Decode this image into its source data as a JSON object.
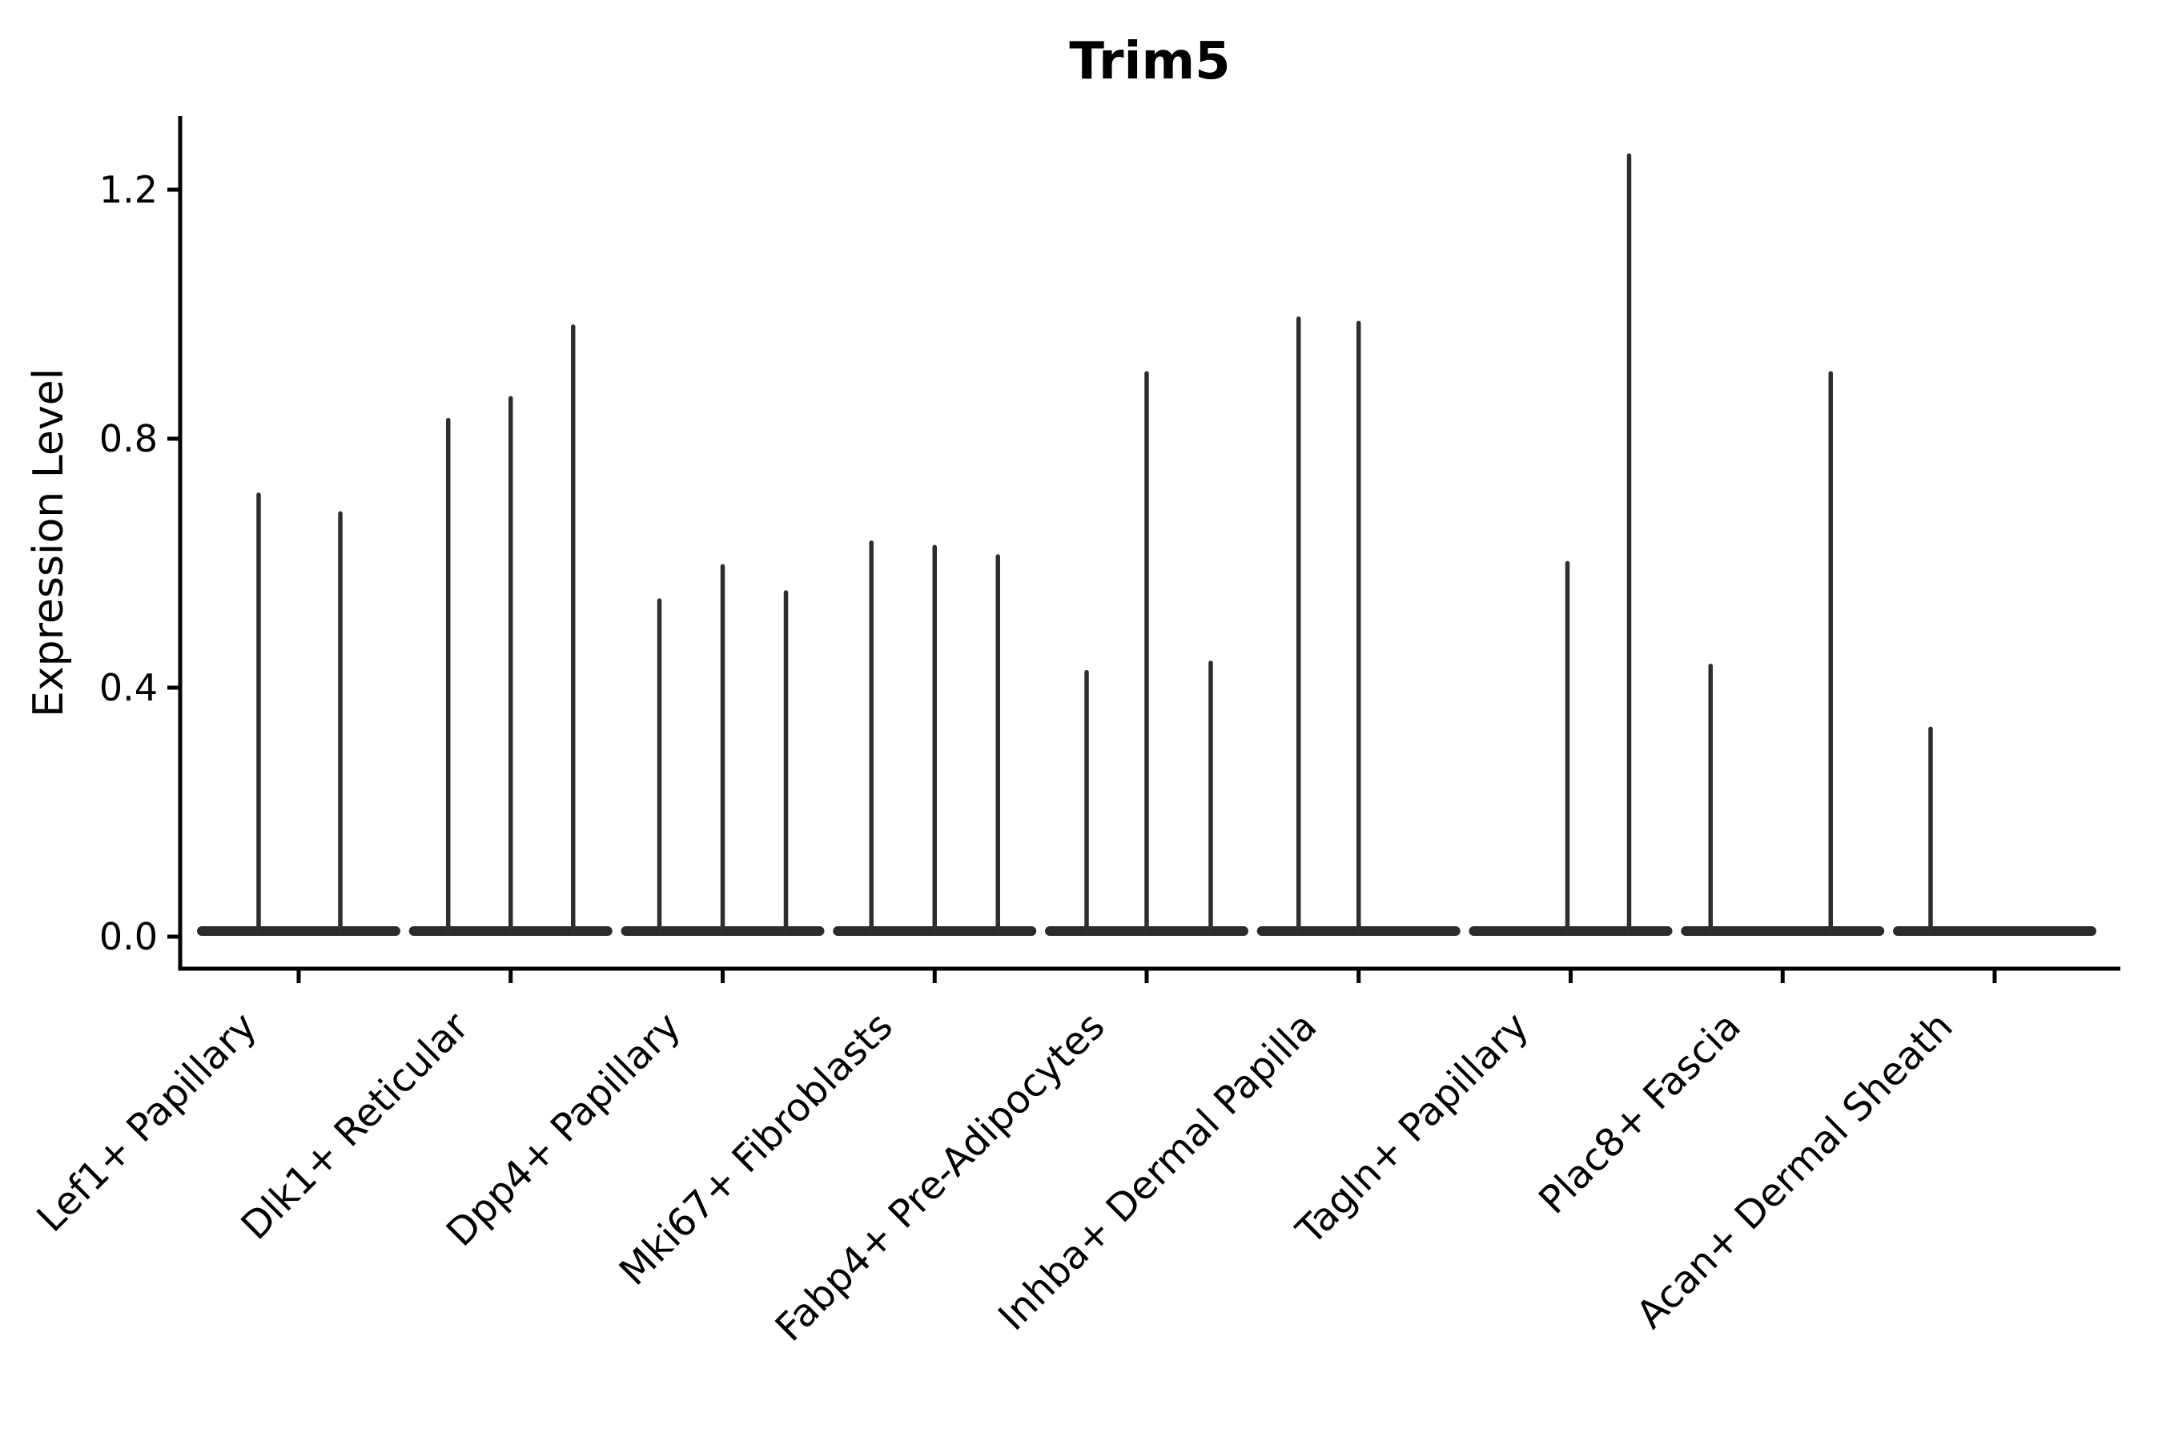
{
  "title": "Trim5",
  "axes": {
    "ylabel": "Expression Level",
    "ytick_labels": [
      "0.0",
      "0.4",
      "0.8",
      "1.2"
    ]
  },
  "chart_data": {
    "type": "violin",
    "title": "Trim5",
    "xlabel": "",
    "ylabel": "Expression Level",
    "yticks": [
      0.0,
      0.4,
      0.8,
      1.2
    ],
    "ylim": [
      -0.05,
      1.32
    ],
    "grid": false,
    "legend": null,
    "categories": [
      "Lef1+ Papillary",
      "Dlk1+ Reticular",
      "Dpp4+ Papillary",
      "Mki67+ Fibroblasts",
      "Fabp4+ Pre-Adipocytes",
      "Inhba+ Dermal Papilla",
      "Tagln+ Papillary",
      "Plac8+ Fascia",
      "Acan+ Dermal Sheath"
    ],
    "violins": [
      {
        "category": "Lef1+ Papillary",
        "baseline_value": 0.0,
        "spikes": [
          {
            "dx": -50,
            "max": 0.71
          },
          {
            "dx": 52,
            "max": 0.68
          }
        ]
      },
      {
        "category": "Dlk1+ Reticular",
        "baseline_value": 0.0,
        "spikes": [
          {
            "dx": -78,
            "max": 0.83
          },
          {
            "dx": 0,
            "max": 0.865
          },
          {
            "dx": 78,
            "max": 0.98
          }
        ]
      },
      {
        "category": "Dpp4+ Papillary",
        "baseline_value": 0.0,
        "spikes": [
          {
            "dx": -79,
            "max": 0.54
          },
          {
            "dx": 0,
            "max": 0.595
          },
          {
            "dx": 79,
            "max": 0.553
          }
        ]
      },
      {
        "category": "Mki67+ Fibroblasts",
        "baseline_value": 0.0,
        "spikes": [
          {
            "dx": -79,
            "max": 0.633
          },
          {
            "dx": 0,
            "max": 0.626
          },
          {
            "dx": 79,
            "max": 0.611
          }
        ]
      },
      {
        "category": "Fabp4+ Pre-Adipocytes",
        "baseline_value": 0.0,
        "spikes": [
          {
            "dx": -75,
            "max": 0.425
          },
          {
            "dx": 0,
            "max": 0.905
          },
          {
            "dx": 80,
            "max": 0.44
          }
        ]
      },
      {
        "category": "Inhba+ Dermal Papilla",
        "baseline_value": 0.0,
        "spikes": [
          {
            "dx": -75,
            "max": 0.993
          },
          {
            "dx": 0,
            "max": 0.986
          }
        ]
      },
      {
        "category": "Tagln+ Papillary",
        "baseline_value": 0.0,
        "spikes": [
          {
            "dx": -4,
            "max": 0.6
          },
          {
            "dx": 73,
            "max": 1.255
          }
        ]
      },
      {
        "category": "Plac8+ Fascia",
        "baseline_value": 0.0,
        "spikes": [
          {
            "dx": -90,
            "max": 0.435
          },
          {
            "dx": 60,
            "max": 0.905
          }
        ]
      },
      {
        "category": "Acan+ Dermal Sheath",
        "baseline_value": 0.0,
        "spikes": [
          {
            "dx": -80,
            "max": 0.334
          }
        ]
      }
    ],
    "colors": {
      "violin": "#2e2e2e",
      "axis": "#000000",
      "background": "#ffffff"
    }
  }
}
